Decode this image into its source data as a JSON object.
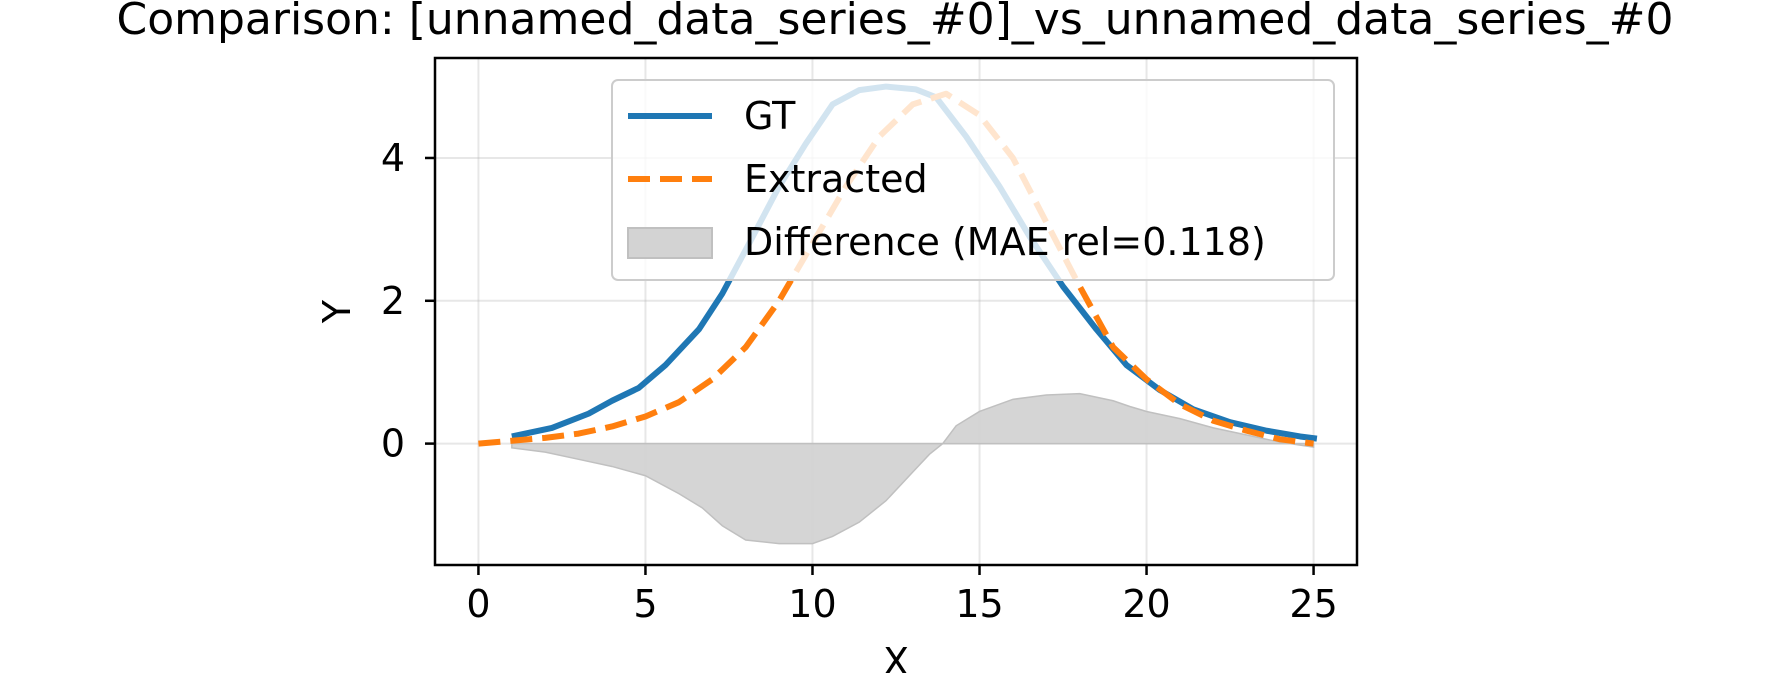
{
  "chart_data": {
    "type": "line",
    "title": "Comparison: [unnamed_data_series_#0]_vs_unnamed_data_series_#0",
    "xlabel": "X",
    "ylabel": "Y",
    "xlim": [
      -1.3,
      26.3
    ],
    "ylim": [
      -1.7,
      5.4
    ],
    "xticks": [
      0,
      5,
      10,
      15,
      20,
      25
    ],
    "yticks": [
      0,
      2,
      4
    ],
    "grid": true,
    "legend_position": "top-center",
    "series": [
      {
        "name": "GT",
        "style": "solid",
        "color": "#1f77b4",
        "x": [
          1.0,
          2.2,
          3.3,
          4.0,
          4.8,
          5.6,
          6.6,
          7.3,
          8.1,
          9.0,
          9.8,
          10.6,
          11.4,
          12.2,
          13.1,
          13.7,
          14.6,
          15.6,
          16.5,
          17.5,
          18.5,
          19.4,
          20.4,
          21.4,
          22.5,
          23.6,
          24.6,
          25.1
        ],
        "values": [
          0.1,
          0.22,
          0.42,
          0.6,
          0.78,
          1.1,
          1.6,
          2.1,
          2.8,
          3.6,
          4.2,
          4.75,
          4.95,
          5.0,
          4.96,
          4.85,
          4.3,
          3.6,
          2.9,
          2.2,
          1.6,
          1.1,
          0.75,
          0.48,
          0.3,
          0.18,
          0.1,
          0.07
        ]
      },
      {
        "name": "Extracted",
        "style": "dashed",
        "color": "#ff7f0e",
        "x": [
          0.0,
          1.0,
          2.0,
          3.0,
          4.0,
          5.0,
          6.0,
          7.0,
          8.0,
          9.0,
          10.0,
          11.0,
          12.0,
          13.0,
          14.0,
          15.0,
          16.0,
          17.0,
          18.0,
          19.0,
          20.0,
          21.0,
          22.0,
          23.0,
          24.0,
          25.0
        ],
        "values": [
          0.0,
          0.04,
          0.08,
          0.14,
          0.24,
          0.38,
          0.58,
          0.9,
          1.35,
          2.0,
          2.8,
          3.6,
          4.3,
          4.75,
          4.9,
          4.6,
          4.0,
          3.1,
          2.2,
          1.35,
          0.9,
          0.55,
          0.32,
          0.18,
          0.06,
          0.0
        ]
      },
      {
        "name": "Difference (MAE rel=0.118)",
        "style": "fill",
        "color": "#d3d3d3",
        "x": [
          1.0,
          2.0,
          3.0,
          4.0,
          5.0,
          6.0,
          6.7,
          7.3,
          8.0,
          9.0,
          10.0,
          10.6,
          11.4,
          12.2,
          13.0,
          13.5,
          13.9,
          14.3,
          15.0,
          16.0,
          17.0,
          18.0,
          19.0,
          19.5,
          20.0,
          21.0,
          22.0,
          23.0,
          24.0,
          25.0
        ],
        "values": [
          -0.06,
          -0.12,
          -0.22,
          -0.32,
          -0.45,
          -0.7,
          -0.9,
          -1.15,
          -1.35,
          -1.4,
          -1.4,
          -1.3,
          -1.1,
          -0.8,
          -0.4,
          -0.15,
          0.0,
          0.25,
          0.45,
          0.62,
          0.68,
          0.7,
          0.6,
          0.52,
          0.45,
          0.35,
          0.22,
          0.12,
          0.02,
          -0.05
        ]
      }
    ]
  }
}
